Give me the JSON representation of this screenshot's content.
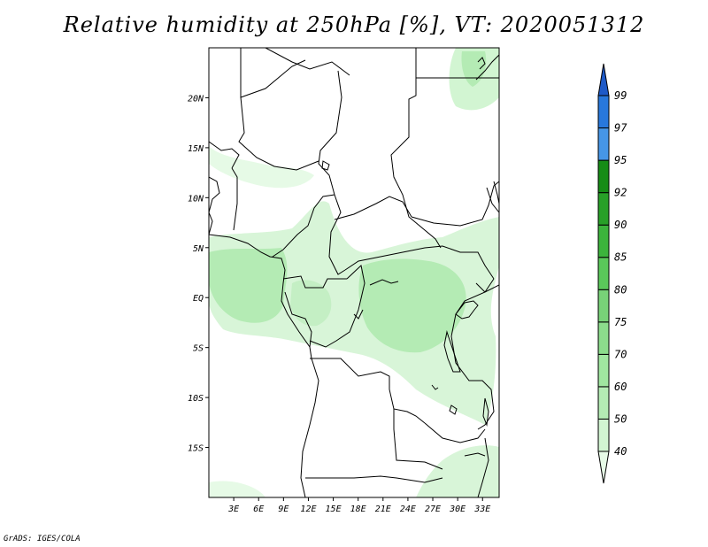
{
  "title": "Relative humidity at 250hPa [%], VT: 2020051312",
  "credit": "GrADS: IGES/COLA",
  "map": {
    "lon_range": [
      0,
      35
    ],
    "lat_range": [
      -20,
      25
    ],
    "lat_labels": [
      "20N",
      "15N",
      "10N",
      "5N",
      "EQ",
      "5S",
      "10S",
      "15S"
    ],
    "lon_labels": [
      "3E",
      "6E",
      "9E",
      "12E",
      "15E",
      "18E",
      "21E",
      "24E",
      "27E",
      "30E",
      "33E"
    ],
    "field": "relative humidity",
    "level": "250hPa"
  },
  "colorbar": {
    "levels": [
      "40",
      "50",
      "60",
      "70",
      "75",
      "80",
      "85",
      "90",
      "92",
      "95",
      "97",
      "99"
    ],
    "colors": [
      "#e6fae6",
      "#d2f5d2",
      "#b4ebb4",
      "#a0e6a0",
      "#8cdc8c",
      "#78d278",
      "#5ac85a",
      "#3cb43c",
      "#28a028",
      "#168c16",
      "#4696e6",
      "#2878dc",
      "#1e5ac8"
    ]
  }
}
